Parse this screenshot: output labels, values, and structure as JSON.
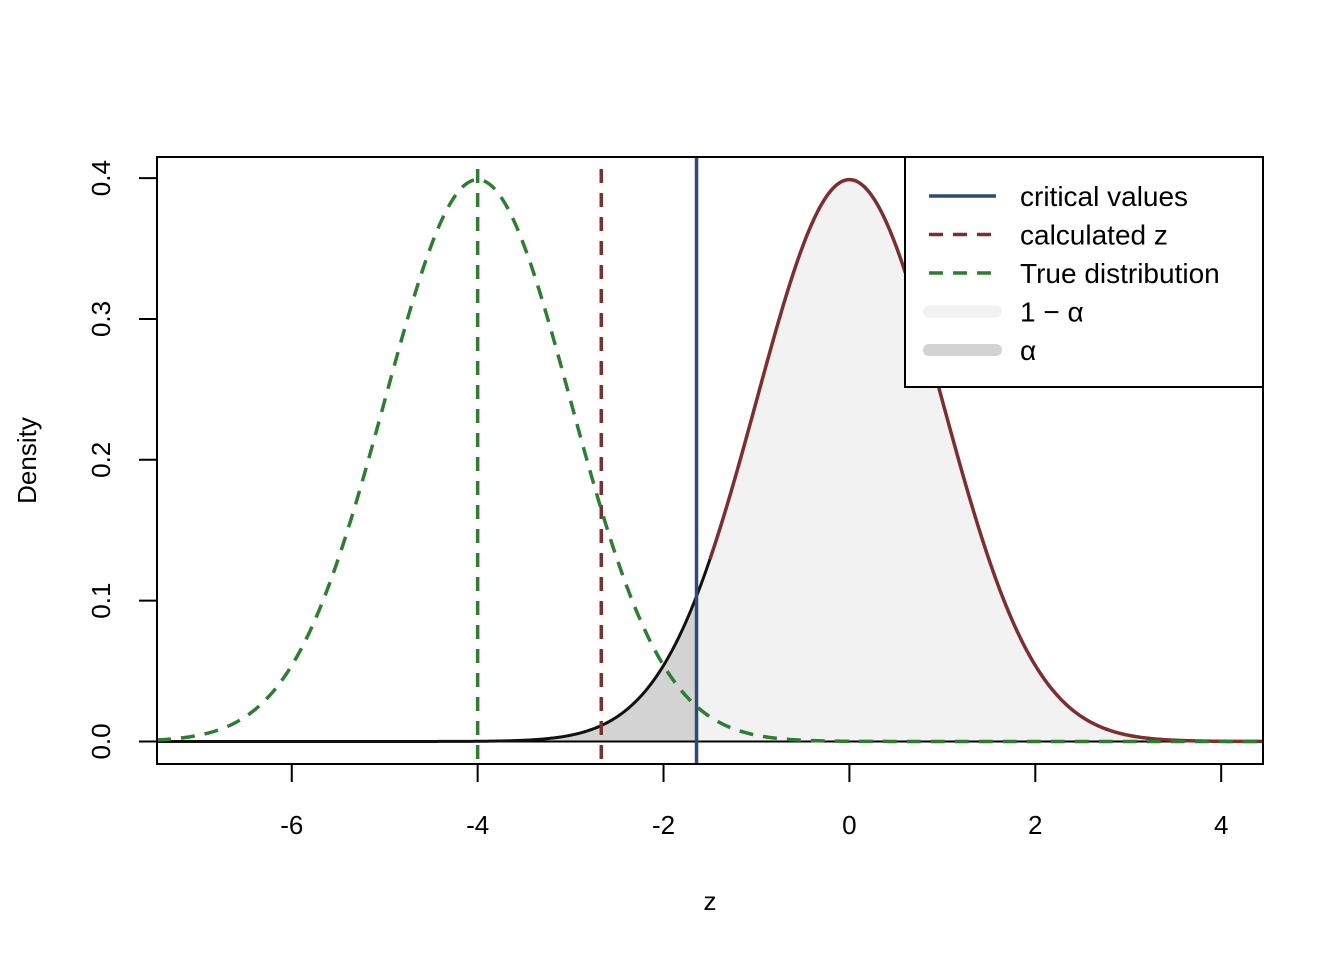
{
  "chart_data": {
    "type": "line",
    "xlabel": "z",
    "ylabel": "Density",
    "xlim": [
      -7.45,
      4.45
    ],
    "ylim": [
      -0.016,
      0.415
    ],
    "x_ticks": [
      -6,
      -4,
      -2,
      0,
      2,
      4
    ],
    "x_tick_labels": [
      "-6",
      "-4",
      "-2",
      "0",
      "2",
      "4"
    ],
    "y_ticks": [
      0.0,
      0.1,
      0.2,
      0.3,
      0.4
    ],
    "y_tick_labels": [
      "0.0",
      "0.1",
      "0.2",
      "0.3",
      "0.4"
    ],
    "series": [
      {
        "key": "null",
        "kind": "density",
        "mean": 0,
        "sd": 1,
        "x_range": [
          -7.45,
          4.45
        ],
        "style": "solid",
        "color": "#7B2F2F"
      },
      {
        "key": "true",
        "kind": "density",
        "mean": -4,
        "sd": 1,
        "x_range": [
          -7.45,
          4.45
        ],
        "style": "dashed",
        "color": "#2E7D32"
      }
    ],
    "vlines": [
      {
        "key": "critical",
        "x": -1.645,
        "style": "solid",
        "color": "#2F4A7A"
      },
      {
        "key": "calculated",
        "x": -2.67,
        "style": "dashed",
        "color": "#7B2F2F"
      },
      {
        "key": "true_mean",
        "x": -4,
        "style": "dashed",
        "color": "#2E7D32"
      }
    ],
    "shaded_regions": [
      {
        "key": "alpha",
        "from": -7.45,
        "to": -1.645,
        "fill": "#D3D3D3"
      },
      {
        "key": "one_minus_alpha",
        "from": -1.645,
        "to": 4.45,
        "fill": "#F2F2F2"
      }
    ],
    "legend": {
      "position": "top-right",
      "entries": [
        {
          "label": "critical values",
          "style": "solid",
          "color": "#2F4A7A",
          "kind": "line"
        },
        {
          "label": "calculated z",
          "style": "dashed",
          "color": "#7B2F2F",
          "kind": "line"
        },
        {
          "label": "True distribution",
          "style": "dashed",
          "color": "#2E7D32",
          "kind": "line"
        },
        {
          "label": "1 − α",
          "color": "#F2F2F2",
          "kind": "fill"
        },
        {
          "label": "α",
          "color": "#D3D3D3",
          "kind": "fill"
        }
      ]
    }
  }
}
